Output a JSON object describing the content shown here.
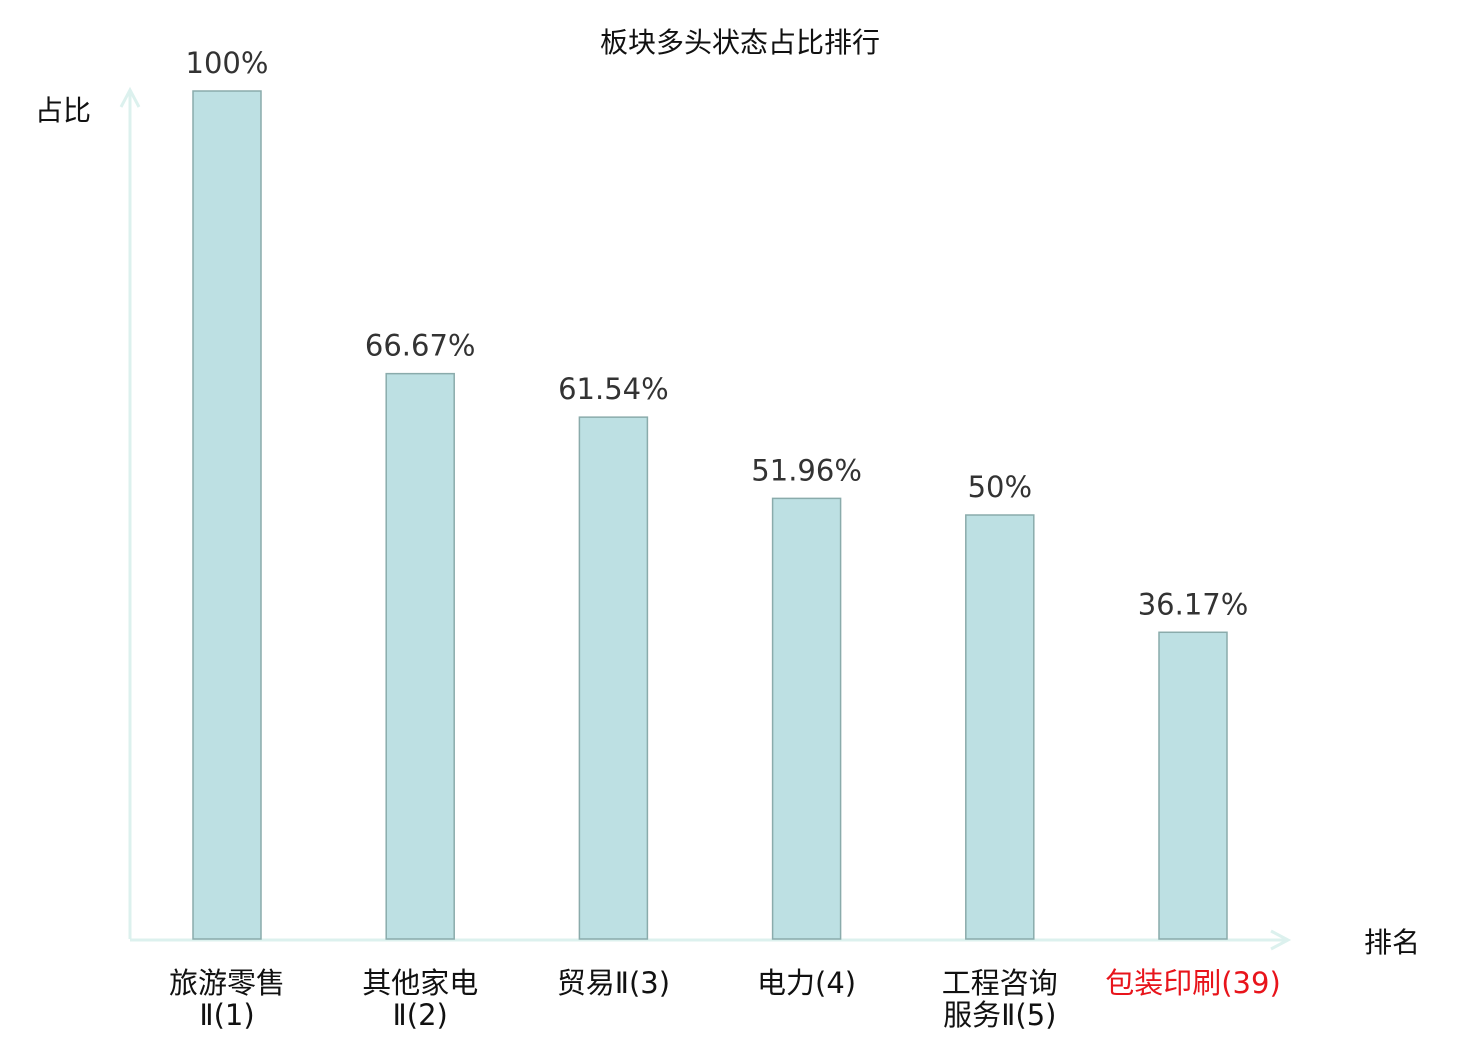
{
  "chart_data": {
    "type": "bar",
    "title": "板块多头状态占比排行",
    "xlabel": "排名",
    "ylabel": "占比",
    "ylim": [
      0,
      100
    ],
    "categories": [
      [
        "旅游零售",
        "Ⅱ(1)"
      ],
      [
        "其他家电",
        "Ⅱ(2)"
      ],
      [
        "贸易Ⅱ(3)"
      ],
      [
        "电力(4)"
      ],
      [
        "工程咨询",
        "服务Ⅱ(5)"
      ],
      [
        "包装印刷(39)"
      ]
    ],
    "values": [
      100,
      66.67,
      61.54,
      51.96,
      50,
      36.17
    ],
    "value_labels": [
      "100%",
      "66.67%",
      "61.54%",
      "51.96%",
      "50%",
      "36.17%"
    ],
    "highlight_index": 5,
    "grid": false,
    "colors": {
      "bar_fill": "#bde0e3",
      "bar_stroke": "#8aabab",
      "axis": "#dcf1ee",
      "highlight_label": "#e8141b",
      "label": "#111111"
    }
  }
}
